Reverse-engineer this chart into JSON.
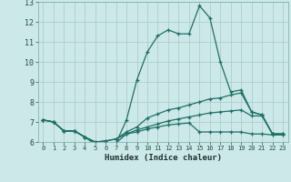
{
  "xlabel": "Humidex (Indice chaleur)",
  "bg_color": "#cce8e8",
  "grid_color": "#aecece",
  "line_color": "#1e7068",
  "xlim": [
    -0.5,
    23.5
  ],
  "ylim": [
    6,
    13
  ],
  "yticks": [
    6,
    7,
    8,
    9,
    10,
    11,
    12,
    13
  ],
  "xticks": [
    0,
    1,
    2,
    3,
    4,
    5,
    6,
    7,
    8,
    9,
    10,
    11,
    12,
    13,
    14,
    15,
    16,
    17,
    18,
    19,
    20,
    21,
    22,
    23
  ],
  "line1_x": [
    0,
    1,
    2,
    3,
    4,
    5,
    6,
    7,
    8,
    9,
    10,
    11,
    12,
    13,
    14,
    15,
    16,
    17,
    18,
    19,
    20,
    21,
    22,
    23
  ],
  "line1_y": [
    7.1,
    7.0,
    6.55,
    6.55,
    6.25,
    5.9,
    5.95,
    5.95,
    7.1,
    9.1,
    10.5,
    11.3,
    11.6,
    11.4,
    11.4,
    12.8,
    12.2,
    10.0,
    8.5,
    8.6,
    7.5,
    7.35,
    6.4,
    6.4
  ],
  "line2_x": [
    0,
    1,
    2,
    3,
    4,
    5,
    6,
    7,
    8,
    9,
    10,
    11,
    12,
    13,
    14,
    15,
    16,
    17,
    18,
    19,
    20,
    21,
    22,
    23
  ],
  "line2_y": [
    7.1,
    7.0,
    6.55,
    6.55,
    6.25,
    6.0,
    6.05,
    6.15,
    6.5,
    6.75,
    7.2,
    7.4,
    7.6,
    7.7,
    7.85,
    8.0,
    8.15,
    8.2,
    8.35,
    8.45,
    7.5,
    7.35,
    6.4,
    6.4
  ],
  "line3_x": [
    0,
    1,
    2,
    3,
    4,
    5,
    6,
    7,
    8,
    9,
    10,
    11,
    12,
    13,
    14,
    15,
    16,
    17,
    18,
    19,
    20,
    21,
    22,
    23
  ],
  "line3_y": [
    7.1,
    7.0,
    6.55,
    6.55,
    6.25,
    6.0,
    6.05,
    6.15,
    6.4,
    6.6,
    6.75,
    6.9,
    7.05,
    7.15,
    7.25,
    7.35,
    7.45,
    7.5,
    7.55,
    7.6,
    7.3,
    7.3,
    6.4,
    6.4
  ],
  "line4_x": [
    0,
    1,
    2,
    3,
    4,
    5,
    6,
    7,
    8,
    9,
    10,
    11,
    12,
    13,
    14,
    15,
    16,
    17,
    18,
    19,
    20,
    21,
    22,
    23
  ],
  "line4_y": [
    7.1,
    7.0,
    6.55,
    6.55,
    6.25,
    5.9,
    5.95,
    5.95,
    6.4,
    6.5,
    6.65,
    6.75,
    6.85,
    6.9,
    6.95,
    6.5,
    6.5,
    6.5,
    6.5,
    6.5,
    6.4,
    6.4,
    6.35,
    6.35
  ]
}
